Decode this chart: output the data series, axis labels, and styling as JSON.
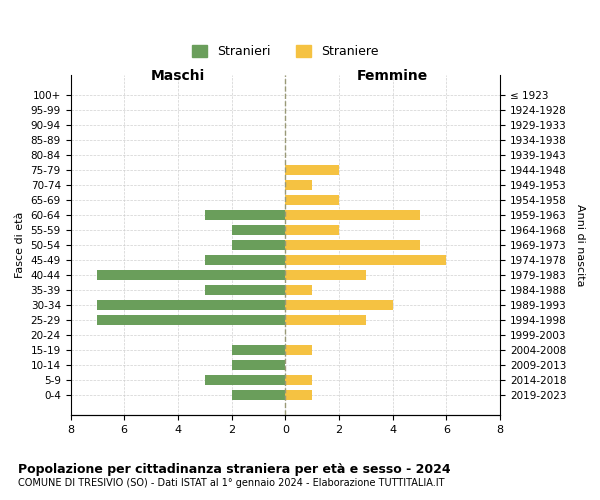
{
  "age_groups": [
    "100+",
    "95-99",
    "90-94",
    "85-89",
    "80-84",
    "75-79",
    "70-74",
    "65-69",
    "60-64",
    "55-59",
    "50-54",
    "45-49",
    "40-44",
    "35-39",
    "30-34",
    "25-29",
    "20-24",
    "15-19",
    "10-14",
    "5-9",
    "0-4"
  ],
  "birth_years": [
    "≤ 1923",
    "1924-1928",
    "1929-1933",
    "1934-1938",
    "1939-1943",
    "1944-1948",
    "1949-1953",
    "1954-1958",
    "1959-1963",
    "1964-1968",
    "1969-1973",
    "1974-1978",
    "1979-1983",
    "1984-1988",
    "1989-1993",
    "1994-1998",
    "1999-2003",
    "2004-2008",
    "2009-2013",
    "2014-2018",
    "2019-2023"
  ],
  "maschi": [
    0,
    0,
    0,
    0,
    0,
    0,
    0,
    0,
    3,
    2,
    2,
    3,
    7,
    3,
    7,
    7,
    0,
    2,
    2,
    3,
    2
  ],
  "femmine": [
    0,
    0,
    0,
    0,
    0,
    2,
    1,
    2,
    5,
    2,
    5,
    6,
    3,
    1,
    4,
    3,
    0,
    1,
    0,
    1,
    1
  ],
  "maschi_color": "#6a9e5b",
  "femmine_color": "#f5c242",
  "title": "Popolazione per cittadinanza straniera per età e sesso - 2024",
  "subtitle": "COMUNE DI TRESIVIO (SO) - Dati ISTAT al 1° gennaio 2024 - Elaborazione TUTTITALIA.IT",
  "legend_maschi": "Stranieri",
  "legend_femmine": "Straniere",
  "xlabel_left": "Maschi",
  "xlabel_right": "Femmine",
  "ylabel_left": "Fasce di età",
  "ylabel_right": "Anni di nascita",
  "xlim": 8,
  "background_color": "#ffffff",
  "grid_color": "#cccccc"
}
